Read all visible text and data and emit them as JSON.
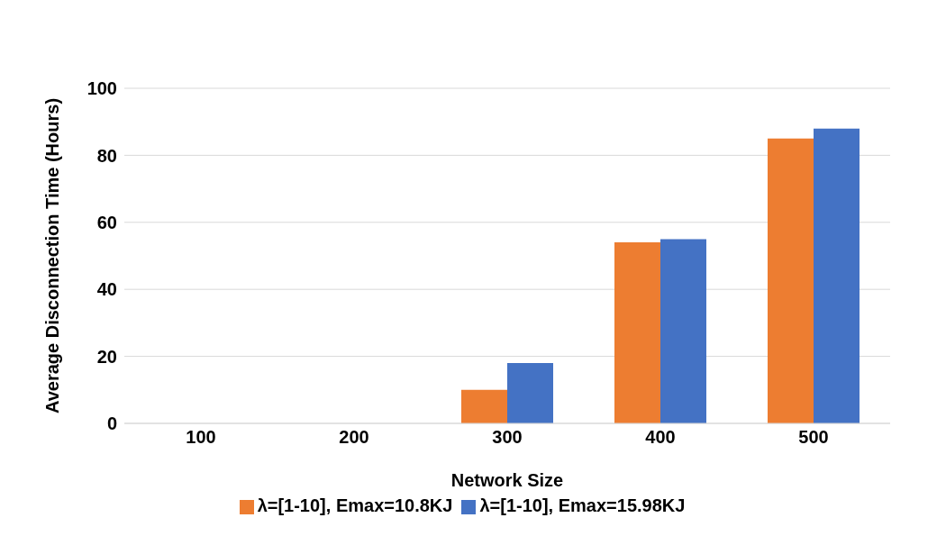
{
  "chart_data": {
    "type": "bar",
    "xlabel": "Network Size",
    "ylabel": "Average Disconnection Time (Hours)",
    "categories": [
      "100",
      "200",
      "300",
      "400",
      "500"
    ],
    "series": [
      {
        "name": "λ=[1-10], Emax=10.8KJ",
        "color": "#ed7d31",
        "values": [
          0,
          0,
          10,
          54,
          85
        ]
      },
      {
        "name": "λ=[1-10], Emax=15.98KJ",
        "color": "#4472c4",
        "values": [
          0,
          0,
          18,
          55,
          88
        ]
      }
    ],
    "ylim": [
      0,
      100
    ],
    "yticks": [
      0,
      20,
      40,
      60,
      80,
      100
    ],
    "grid": "y",
    "legend": "bottom"
  }
}
